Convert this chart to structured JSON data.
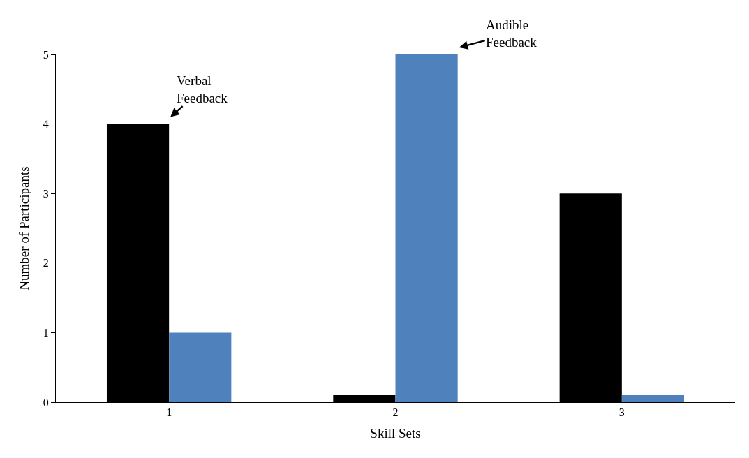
{
  "chart_data": {
    "type": "bar",
    "xlabel": "Skill Sets",
    "ylabel": "Number of Participants",
    "categories": [
      "1",
      "2",
      "3"
    ],
    "series": [
      {
        "name": "Verbal Feedback",
        "color": "#000000",
        "values": [
          4,
          0.1,
          3
        ]
      },
      {
        "name": "Audible Feedback",
        "color": "#4f81bd",
        "values": [
          1,
          5,
          0.1
        ]
      }
    ],
    "ylim": [
      0,
      5
    ],
    "yticks": [
      0,
      1,
      2,
      3,
      4,
      5
    ],
    "grid": false,
    "legend": false
  }
}
